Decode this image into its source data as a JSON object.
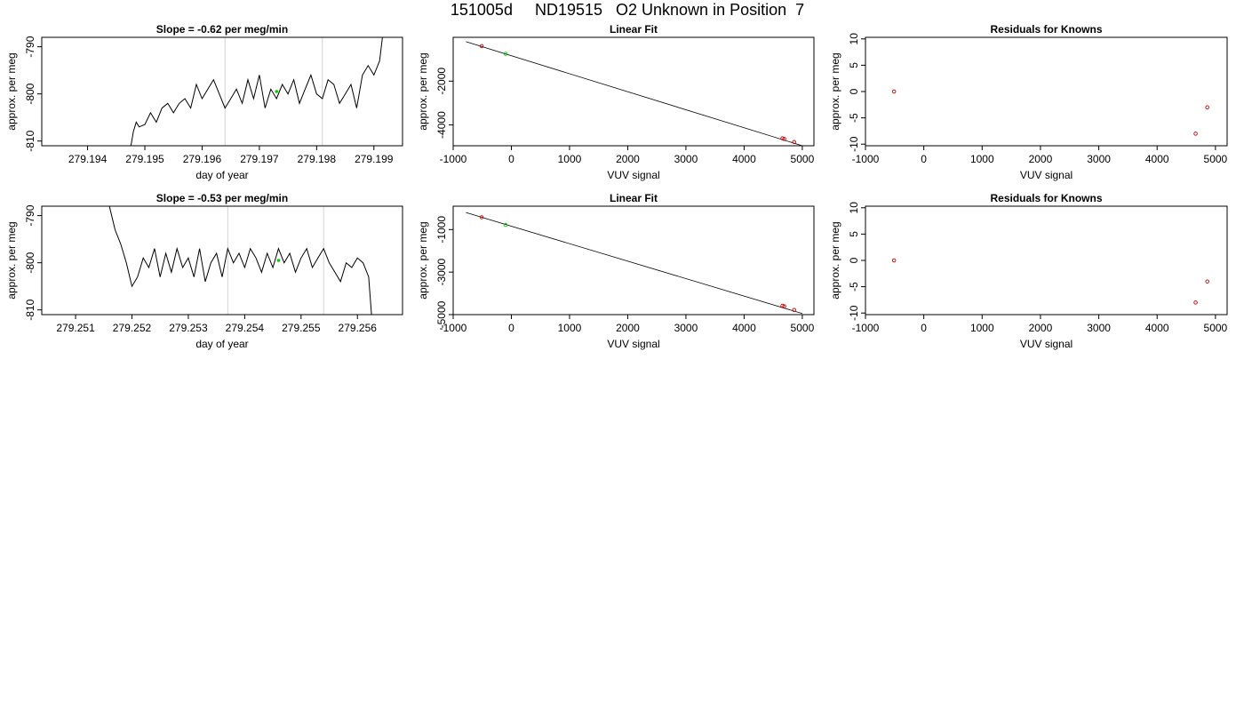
{
  "main_title": "151005d     ND19515   O2 Unknown in Position  7",
  "chart_data": [
    {
      "type": "line",
      "title": "Slope =  -0.62  per meg/min",
      "xlabel": "day of year",
      "ylabel": "approx. per meg",
      "xlim": [
        279.1932,
        279.1995
      ],
      "ylim": [
        -811,
        -788
      ],
      "xticks": [
        279.194,
        279.195,
        279.196,
        279.197,
        279.198,
        279.199
      ],
      "xtick_labels": [
        "279.194",
        "279.195",
        "279.196",
        "279.197",
        "279.198",
        "279.199"
      ],
      "yticks": [
        -810,
        -800,
        -790
      ],
      "ytick_labels": [
        "-810",
        "-800",
        "-790"
      ],
      "vlines": [
        279.1964,
        279.1981
      ],
      "vline_color": "#d3d3d3",
      "marker": {
        "x": 279.1973,
        "y": -799.5,
        "color": "#00cc00"
      },
      "series": [
        {
          "x": [
            279.19475,
            279.1948,
            279.19485,
            279.1949,
            279.195,
            279.1951,
            279.1952,
            279.1953,
            279.1954,
            279.1955,
            279.1956,
            279.1957,
            279.1958,
            279.1959,
            279.196,
            279.1961,
            279.1962,
            279.1963,
            279.1964,
            279.1965,
            279.1966,
            279.1967,
            279.1968,
            279.1969,
            279.197,
            279.1971,
            279.1972,
            279.1973,
            279.1974,
            279.1975,
            279.1976,
            279.1977,
            279.1978,
            279.1979,
            279.198,
            279.1981,
            279.1982,
            279.1983,
            279.1984,
            279.1985,
            279.1986,
            279.1987,
            279.1988,
            279.1989,
            279.199,
            279.1991,
            279.19915
          ],
          "y": [
            -811.5,
            -808,
            -806,
            -807,
            -806.5,
            -804,
            -806,
            -803,
            -802,
            -804,
            -802,
            -801,
            -803,
            -798,
            -801,
            -799,
            -797,
            -800,
            -803,
            -801,
            -799,
            -802,
            -797,
            -801,
            -796,
            -803,
            -799,
            -801,
            -798,
            -800,
            -797,
            -802,
            -799,
            -796,
            -800,
            -801,
            -797,
            -798,
            -802,
            -800,
            -798,
            -803,
            -796,
            -794,
            -796,
            -793,
            -788
          ]
        }
      ],
      "line_color": "#000000"
    },
    {
      "type": "scatter",
      "title": "Linear Fit",
      "xlabel": "VUV signal",
      "ylabel": "approx. per meg",
      "xlim": [
        -1000,
        5200
      ],
      "ylim": [
        -4950,
        0
      ],
      "xticks": [
        -1000,
        0,
        1000,
        2000,
        3000,
        4000,
        5000
      ],
      "xtick_labels": [
        "-1000",
        "0",
        "1000",
        "2000",
        "3000",
        "4000",
        "5000"
      ],
      "yticks": [
        -4000,
        -2000
      ],
      "ytick_labels": [
        "-4000",
        "-2000"
      ],
      "fit_line": {
        "x": [
          -780,
          5000
        ],
        "y": [
          -200,
          -4950
        ]
      },
      "points_known": {
        "x": [
          -510,
          4660,
          4690,
          4860
        ],
        "y": [
          -400,
          -4610,
          -4640,
          -4780
        ],
        "color": "#cc0000"
      },
      "points_unknown": {
        "x": [
          -100
        ],
        "y": [
          -750
        ],
        "color": "#00cc00"
      }
    },
    {
      "type": "scatter",
      "title": "Residuals for Knowns",
      "xlabel": "VUV signal",
      "ylabel": "approx. per meg",
      "xlim": [
        -1000,
        5200
      ],
      "ylim": [
        -10.3,
        10.3
      ],
      "xticks": [
        -1000,
        0,
        1000,
        2000,
        3000,
        4000,
        5000
      ],
      "xtick_labels": [
        "-1000",
        "0",
        "1000",
        "2000",
        "3000",
        "4000",
        "5000"
      ],
      "yticks": [
        -10,
        -5,
        0,
        5,
        10
      ],
      "ytick_labels": [
        "-10",
        "-5",
        "0",
        "5",
        "10"
      ],
      "points_known": {
        "x": [
          -510,
          4660,
          4860
        ],
        "y": [
          0,
          -8,
          -3
        ],
        "color": "#cc0000"
      }
    },
    {
      "type": "line",
      "title": "Slope =  -0.53  per meg/min",
      "xlabel": "day of year",
      "ylabel": "approx. per meg",
      "xlim": [
        279.2504,
        279.2568
      ],
      "ylim": [
        -811,
        -788
      ],
      "xticks": [
        279.251,
        279.252,
        279.253,
        279.254,
        279.255,
        279.256
      ],
      "xtick_labels": [
        "279.251",
        "279.252",
        "279.253",
        "279.254",
        "279.255",
        "279.256"
      ],
      "yticks": [
        -810,
        -800,
        -790
      ],
      "ytick_labels": [
        "-810",
        "-800",
        "-790"
      ],
      "vlines": [
        279.2537,
        279.2554
      ],
      "vline_color": "#d3d3d3",
      "marker": {
        "x": 279.2546,
        "y": -799.5,
        "color": "#00cc00"
      },
      "series": [
        {
          "x": [
            279.2516,
            279.2517,
            279.2518,
            279.2519,
            279.252,
            279.2521,
            279.2522,
            279.2523,
            279.2524,
            279.2525,
            279.2526,
            279.2527,
            279.2528,
            279.2529,
            279.253,
            279.2531,
            279.2532,
            279.2533,
            279.2534,
            279.2535,
            279.2536,
            279.2537,
            279.2538,
            279.2539,
            279.254,
            279.2541,
            279.2542,
            279.2543,
            279.2544,
            279.2545,
            279.2546,
            279.2547,
            279.2548,
            279.2549,
            279.255,
            279.2551,
            279.2552,
            279.2553,
            279.2554,
            279.2555,
            279.2556,
            279.2557,
            279.2558,
            279.2559,
            279.256,
            279.2561,
            279.2562,
            279.25625
          ],
          "y": [
            -788,
            -793,
            -796,
            -800,
            -805,
            -803,
            -799,
            -801,
            -797,
            -803,
            -798,
            -802,
            -797,
            -801,
            -799,
            -803,
            -797,
            -804,
            -800,
            -798,
            -803,
            -797,
            -800,
            -798,
            -801,
            -797,
            -799,
            -802,
            -798,
            -801,
            -797,
            -800,
            -798,
            -802,
            -799,
            -797,
            -801,
            -799,
            -797,
            -800,
            -802,
            -804,
            -800,
            -801,
            -799,
            -800,
            -803,
            -811
          ]
        }
      ],
      "line_color": "#000000"
    },
    {
      "type": "scatter",
      "title": "Linear Fit",
      "xlabel": "VUV signal",
      "ylabel": "approx. per meg",
      "xlim": [
        -1000,
        5200
      ],
      "ylim": [
        -5000,
        100
      ],
      "xticks": [
        -1000,
        0,
        1000,
        2000,
        3000,
        4000,
        5000
      ],
      "xtick_labels": [
        "-1000",
        "0",
        "1000",
        "2000",
        "3000",
        "4000",
        "5000"
      ],
      "yticks": [
        -5000,
        -3000,
        -1000
      ],
      "ytick_labels": [
        "-5000",
        "-3000",
        "-1000"
      ],
      "fit_line": {
        "x": [
          -780,
          5000
        ],
        "y": [
          -200,
          -4950
        ]
      },
      "points_known": {
        "x": [
          -510,
          4660,
          4690,
          4860
        ],
        "y": [
          -420,
          -4580,
          -4610,
          -4780
        ],
        "color": "#cc0000"
      },
      "points_unknown": {
        "x": [
          -100
        ],
        "y": [
          -780
        ],
        "color": "#00cc00"
      }
    },
    {
      "type": "scatter",
      "title": "Residuals for Knowns",
      "xlabel": "VUV signal",
      "ylabel": "approx. per meg",
      "xlim": [
        -1000,
        5200
      ],
      "ylim": [
        -10.3,
        10.3
      ],
      "xticks": [
        -1000,
        0,
        1000,
        2000,
        3000,
        4000,
        5000
      ],
      "xtick_labels": [
        "-1000",
        "0",
        "1000",
        "2000",
        "3000",
        "4000",
        "5000"
      ],
      "yticks": [
        -10,
        -5,
        0,
        5,
        10
      ],
      "ytick_labels": [
        "-10",
        "-5",
        "0",
        "5",
        "10"
      ],
      "points_known": {
        "x": [
          -510,
          4660,
          4860
        ],
        "y": [
          0,
          -8,
          -4
        ],
        "color": "#cc0000"
      }
    }
  ]
}
